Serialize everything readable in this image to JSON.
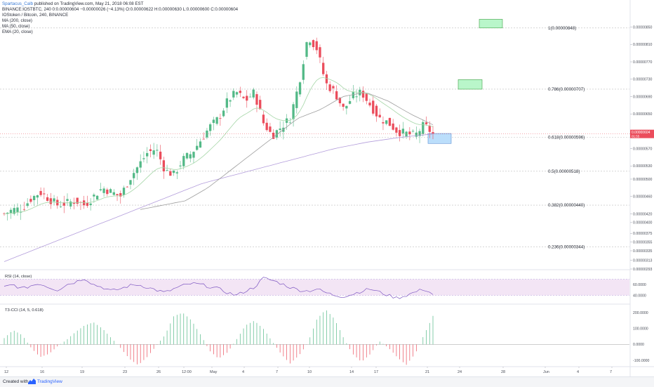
{
  "header": {
    "author": "Spartacus_Calb",
    "published": "published on TradingView.com, May 21, 2018 06:08 EST",
    "line2": "BINANCE:IOSTBTC, 240  0:0.00000604  −0.00000026 (−4.13%)  O:0.00000622  H:0.00000630  L:0.00000600  C:0.00000604",
    "legend": [
      "IOStoken / Bitcoin, 240, BINANCE",
      "MA (200, close)",
      "MA (50, close)",
      "EMA (20, close)"
    ]
  },
  "footer": {
    "created_with": "Created with",
    "brand": "TradingView"
  },
  "colors": {
    "up": "#53b987",
    "down": "#eb4d5c",
    "ma200": "#b39ddb",
    "ma50": "#9e9e9e",
    "ema20": "#a5d6a7",
    "rsi_line": "#7e57c2",
    "rsi_band": "#f3e5f5",
    "box_green": "#b9f6ca",
    "box_blue": "#bbdefb",
    "fib": "#bdbdbd"
  },
  "chart_data": [
    {
      "type": "candlestick",
      "title": "IOStoken / Bitcoin, 240, BINANCE",
      "ylim": [
        2.93e-06,
        8.8e-06
      ],
      "y_ticks": [
        "0.00000850",
        "0.00000810",
        "0.00000770",
        "0.00000730",
        "0.00000690",
        "0.00000650",
        "0.00000610",
        "0.00000570",
        "0.00000530",
        "0.00000500",
        "0.00000460",
        "0.00000420",
        "0.00000400",
        "0.00000375",
        "0.00000355",
        "0.00000335",
        "0.00000313",
        "0.00000293"
      ],
      "price_label": "0.00000604",
      "price_label_sub": "01:55",
      "x_ticks": [
        "12",
        "16",
        "19",
        "23",
        "26",
        "12:00",
        "May",
        "4",
        "7",
        "10",
        "14",
        "17",
        "21",
        "24",
        "28",
        "Jun",
        "4",
        "7"
      ],
      "fib_levels": [
        {
          "label": "1(0.00000848)",
          "value": 8.48e-06
        },
        {
          "label": "0.786(0.00000707)",
          "value": 7.07e-06
        },
        {
          "label": "0.618(0.00000596)",
          "value": 5.96e-06
        },
        {
          "label": "0.5(0.00000518)",
          "value": 5.18e-06
        },
        {
          "label": "0.382(0.00000440)",
          "value": 4.4e-06
        },
        {
          "label": "0.236(0.00000344)",
          "value": 3.44e-06
        }
      ],
      "close_path": [
        4.2e-06,
        4.3e-06,
        4.32e-06,
        4.55e-06,
        4.7e-06,
        4.55e-06,
        4.4e-06,
        4.45e-06,
        4.5e-06,
        4.4e-06,
        4.6e-06,
        4.8e-06,
        4.7e-06,
        4.6e-06,
        5e-06,
        5.3e-06,
        5.6e-06,
        5.7e-06,
        5.2e-06,
        5.1e-06,
        5.45e-06,
        5.6e-06,
        5.9e-06,
        6.2e-06,
        6.4e-06,
        6.8e-06,
        7e-06,
        6.8e-06,
        7e-06,
        6.3e-06,
        6e-06,
        6.2e-06,
        6.4e-06,
        7.2e-06,
        8.3e-06,
        8e-06,
        7.2e-06,
        7e-06,
        6.6e-06,
        6.9e-06,
        7e-06,
        6.7e-06,
        6.4e-06,
        6.3e-06,
        6.1e-06,
        6.05e-06,
        6e-06,
        6.25e-06,
        6.04e-06
      ],
      "ma200_path": [
        3.1e-06,
        3.4e-06,
        3.7e-06,
        4e-06,
        4.3e-06,
        4.6e-06,
        4.9e-06,
        5.1e-06,
        5.3e-06,
        5.5e-06,
        5.7e-06,
        5.85e-06,
        5.96e-06,
        6.04e-06
      ],
      "ma50_path": [
        4.3e-06,
        4.4e-06,
        4.5e-06,
        4.8e-06,
        5.2e-06,
        5.6e-06,
        6e-06,
        6.4e-06,
        6.6e-06,
        6.9e-06,
        7e-06,
        6.8e-06,
        6.5e-06,
        6.25e-06
      ],
      "boxes": [
        {
          "kind": "target",
          "top": 8.68e-06,
          "bottom": 8.48e-06
        },
        {
          "kind": "target",
          "top": 7.29e-06,
          "bottom": 7.07e-06
        },
        {
          "kind": "entry",
          "top": 6.05e-06,
          "bottom": 5.82e-06
        }
      ]
    },
    {
      "type": "line",
      "title": "RSI (14, close)",
      "ylim": [
        25,
        85
      ],
      "band": [
        40,
        70
      ],
      "y_ticks": [
        "60.0000",
        "40.0000"
      ],
      "values": [
        55,
        60,
        52,
        58,
        62,
        55,
        50,
        60,
        65,
        72,
        60,
        55,
        48,
        52,
        58,
        60,
        55,
        50,
        45,
        52,
        58,
        62,
        60,
        56,
        52,
        45,
        40,
        48,
        55,
        72,
        68,
        62,
        55,
        50,
        48,
        52,
        45,
        40,
        38,
        42,
        48,
        52,
        46,
        40,
        35,
        40,
        46,
        52,
        42
      ]
    },
    {
      "type": "bar",
      "title": "T3-CCI (14, 5, 0.618)",
      "ylim": [
        -140,
        250
      ],
      "y_ticks": [
        "200.0000",
        "100.0000",
        "0.0000",
        "-100.0000"
      ],
      "values": [
        40,
        90,
        60,
        -20,
        -80,
        -60,
        -10,
        30,
        80,
        120,
        140,
        100,
        40,
        -20,
        -90,
        -130,
        -80,
        -10,
        60,
        180,
        200,
        150,
        60,
        -40,
        -90,
        -50,
        30,
        120,
        150,
        100,
        20,
        -60,
        -120,
        -70,
        10,
        160,
        220,
        160,
        40,
        -60,
        -110,
        -60,
        20,
        -20,
        -80,
        -130,
        -60,
        60,
        180
      ]
    }
  ]
}
